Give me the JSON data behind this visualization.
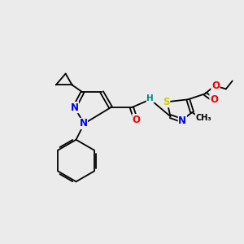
{
  "bg_color": "#ebebeb",
  "atom_colors": {
    "C": "#000000",
    "N": "#0000ee",
    "O": "#ee0000",
    "S": "#cccc00",
    "H": "#008888"
  },
  "figsize": [
    3.0,
    3.0
  ],
  "dpi": 100
}
